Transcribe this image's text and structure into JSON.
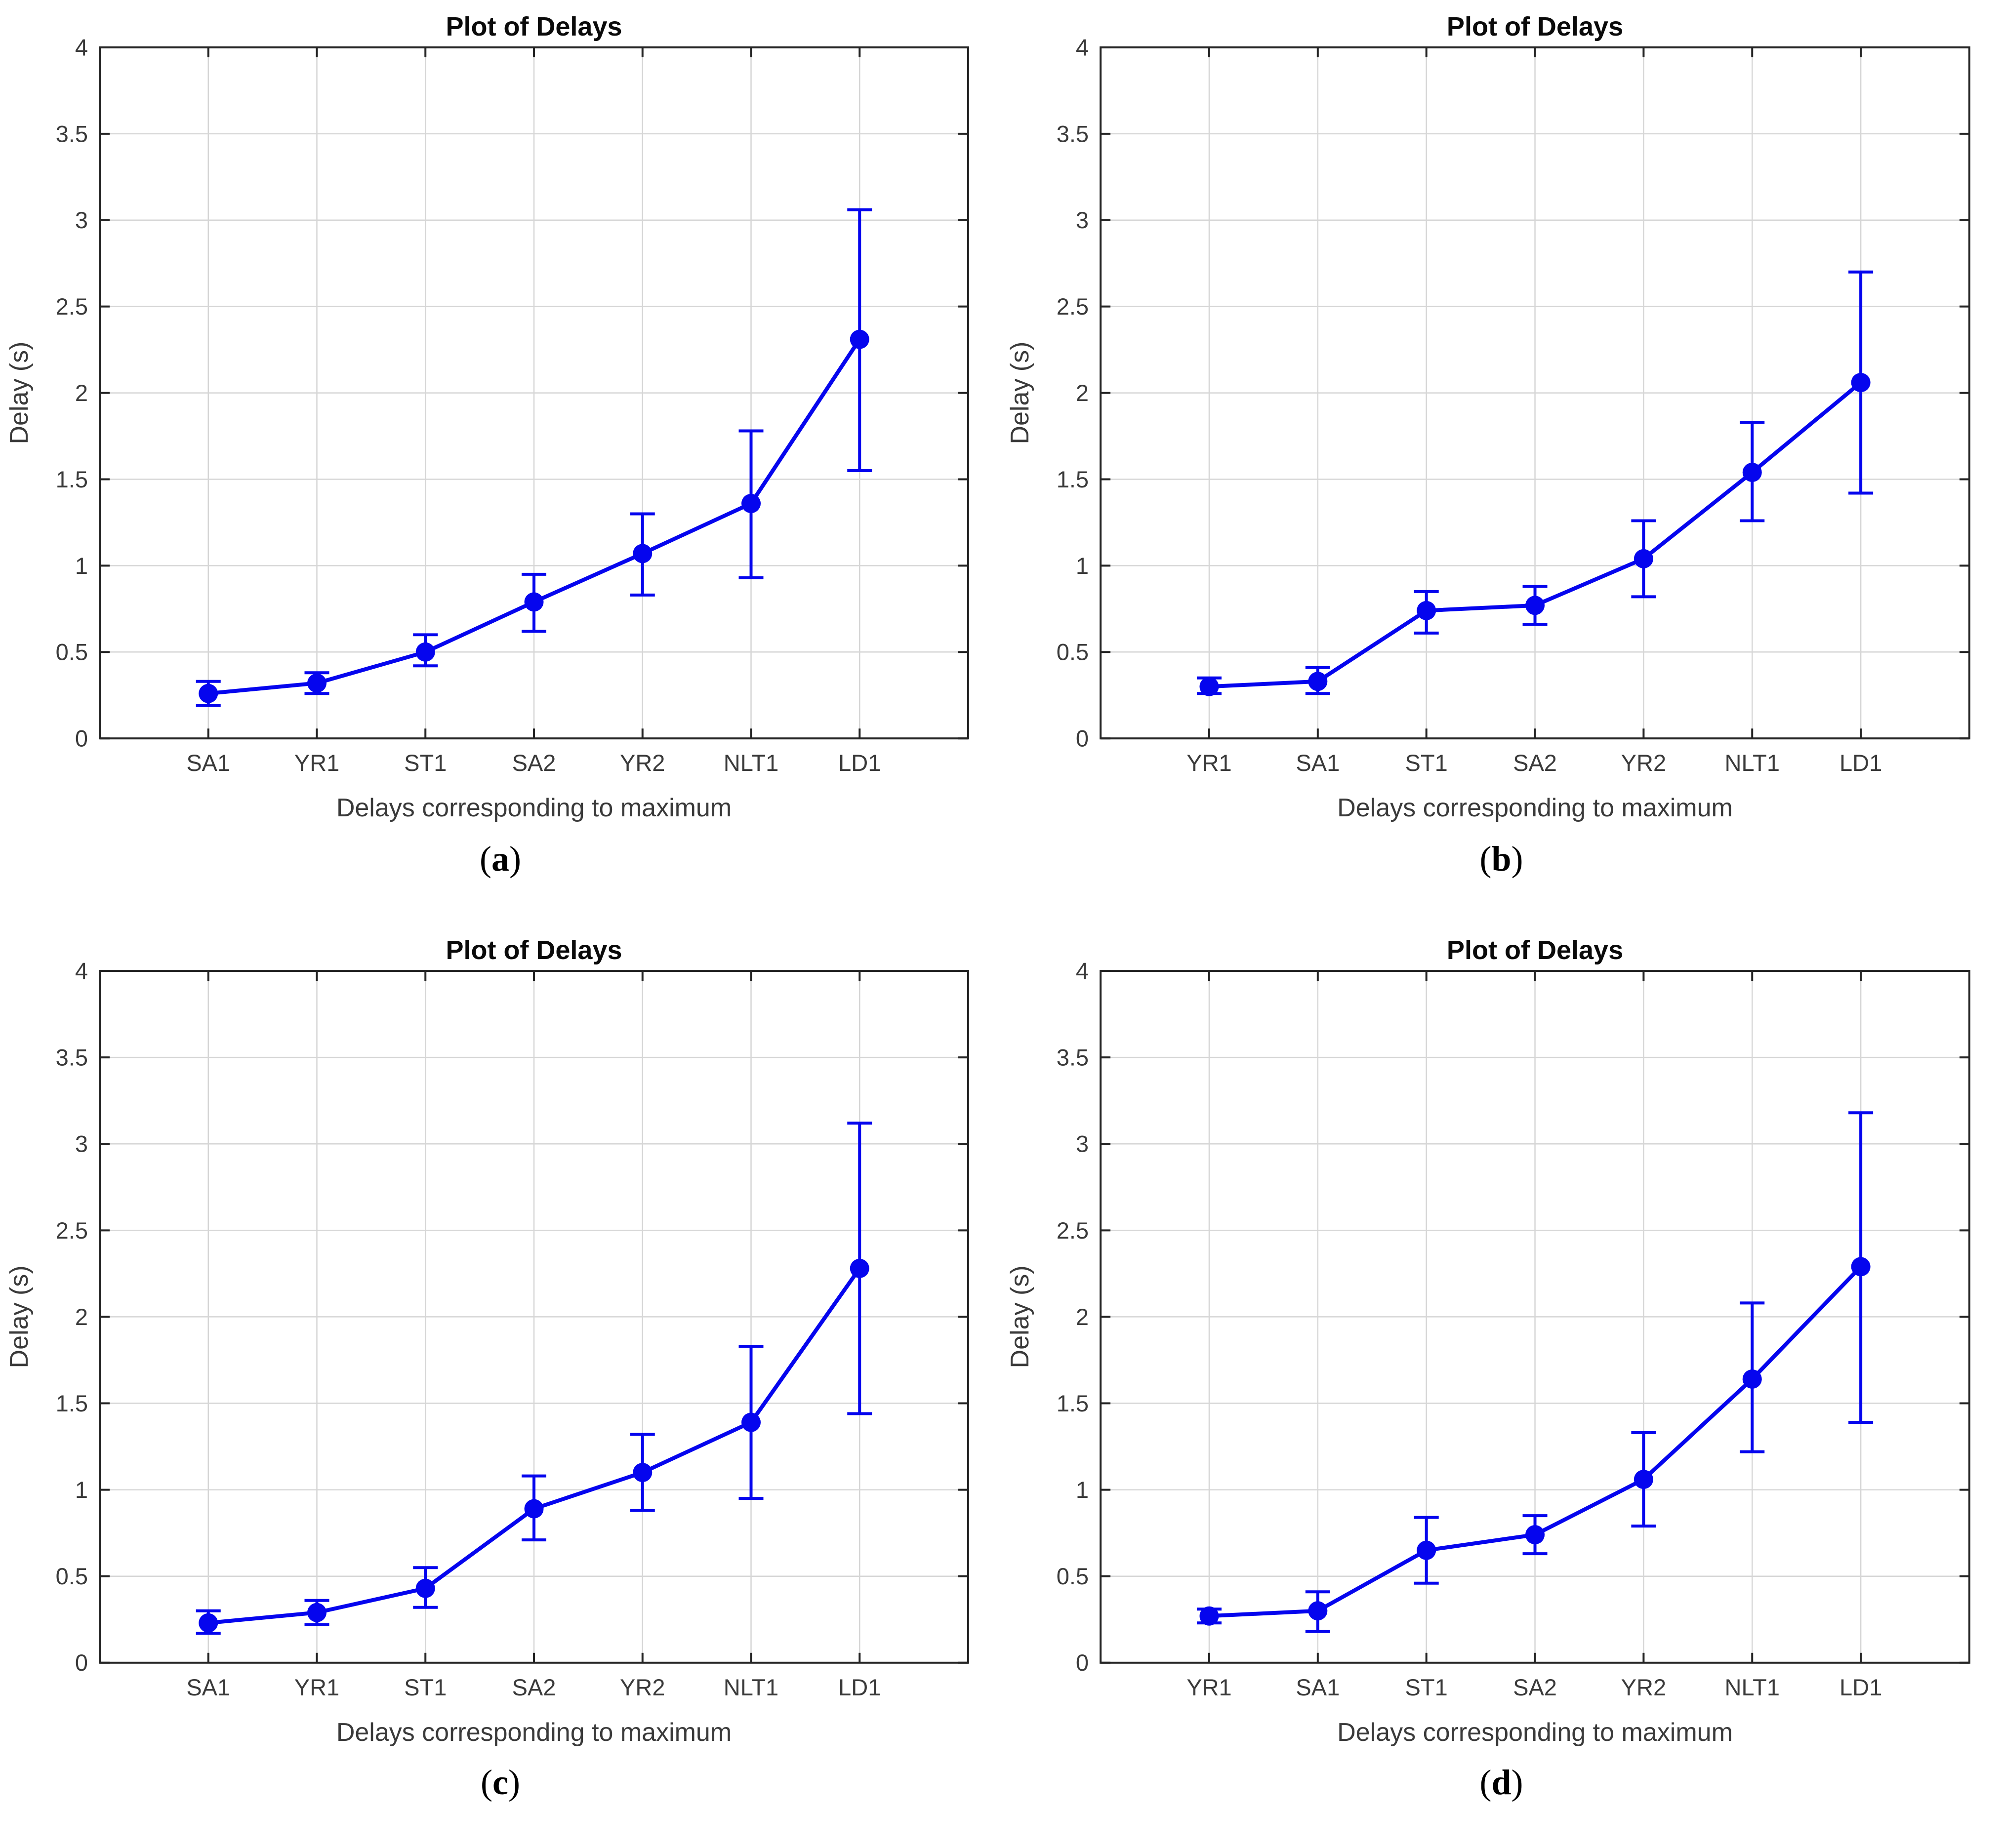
{
  "page": {
    "background": "#ffffff"
  },
  "style": {
    "line_color": "#0505ee",
    "marker_color": "#0505ee",
    "grid_color": "#d6d6d6",
    "axis_color": "#252525",
    "tick_label_color": "#3a3a3a",
    "title_color": "#0a0a0a"
  },
  "chart_data": [
    {
      "type": "line",
      "title": "Plot of Delays",
      "xlabel": "Delays corresponding to maximum",
      "ylabel": "Delay (s)",
      "ylim": [
        0,
        4
      ],
      "yticks": [
        0,
        0.5,
        1,
        1.5,
        2,
        2.5,
        3,
        3.5,
        4
      ],
      "ytick_labels": [
        "0",
        "0.5",
        "1",
        "1.5",
        "2",
        "2.5",
        "3",
        "3.5",
        "4"
      ],
      "grid": true,
      "legend": null,
      "categories": [
        "SA1",
        "YR1",
        "ST1",
        "SA2",
        "YR2",
        "NLT1",
        "LD1"
      ],
      "values": [
        0.26,
        0.32,
        0.5,
        0.79,
        1.07,
        1.36,
        2.31
      ],
      "err_low": [
        0.19,
        0.26,
        0.42,
        0.62,
        0.83,
        0.93,
        1.55
      ],
      "err_high": [
        0.33,
        0.38,
        0.6,
        0.95,
        1.3,
        1.78,
        3.06
      ],
      "caption": {
        "open": "(",
        "letter": "a",
        "close": ")"
      }
    },
    {
      "type": "line",
      "title": "Plot of Delays",
      "xlabel": "Delays corresponding to maximum",
      "ylabel": "Delay (s)",
      "ylim": [
        0,
        4
      ],
      "yticks": [
        0,
        0.5,
        1,
        1.5,
        2,
        2.5,
        3,
        3.5,
        4
      ],
      "ytick_labels": [
        "0",
        "0.5",
        "1",
        "1.5",
        "2",
        "2.5",
        "3",
        "3.5",
        "4"
      ],
      "grid": true,
      "legend": null,
      "categories": [
        "YR1",
        "SA1",
        "ST1",
        "SA2",
        "YR2",
        "NLT1",
        "LD1"
      ],
      "values": [
        0.3,
        0.33,
        0.74,
        0.77,
        1.04,
        1.54,
        2.06
      ],
      "err_low": [
        0.26,
        0.26,
        0.61,
        0.66,
        0.82,
        1.26,
        1.42
      ],
      "err_high": [
        0.35,
        0.41,
        0.85,
        0.88,
        1.26,
        1.83,
        2.7
      ],
      "caption": {
        "open": "(",
        "letter": "b",
        "close": ")"
      }
    },
    {
      "type": "line",
      "title": "Plot of Delays",
      "xlabel": "Delays corresponding to maximum",
      "ylabel": "Delay (s)",
      "ylim": [
        0,
        4
      ],
      "yticks": [
        0,
        0.5,
        1,
        1.5,
        2,
        2.5,
        3,
        3.5,
        4
      ],
      "ytick_labels": [
        "0",
        "0.5",
        "1",
        "1.5",
        "2",
        "2.5",
        "3",
        "3.5",
        "4"
      ],
      "grid": true,
      "legend": null,
      "categories": [
        "SA1",
        "YR1",
        "ST1",
        "SA2",
        "YR2",
        "NLT1",
        "LD1"
      ],
      "values": [
        0.23,
        0.29,
        0.43,
        0.89,
        1.1,
        1.39,
        2.28
      ],
      "err_low": [
        0.17,
        0.22,
        0.32,
        0.71,
        0.88,
        0.95,
        1.44
      ],
      "err_high": [
        0.3,
        0.36,
        0.55,
        1.08,
        1.32,
        1.83,
        3.12
      ],
      "caption": {
        "open": "(",
        "letter": "c",
        "close": ")"
      }
    },
    {
      "type": "line",
      "title": "Plot of Delays",
      "xlabel": "Delays corresponding to maximum",
      "ylabel": "Delay (s)",
      "ylim": [
        0,
        4
      ],
      "yticks": [
        0,
        0.5,
        1,
        1.5,
        2,
        2.5,
        3,
        3.5,
        4
      ],
      "ytick_labels": [
        "0",
        "0.5",
        "1",
        "1.5",
        "2",
        "2.5",
        "3",
        "3.5",
        "4"
      ],
      "grid": true,
      "legend": null,
      "categories": [
        "YR1",
        "SA1",
        "ST1",
        "SA2",
        "YR2",
        "NLT1",
        "LD1"
      ],
      "values": [
        0.27,
        0.3,
        0.65,
        0.74,
        1.06,
        1.64,
        2.29
      ],
      "err_low": [
        0.23,
        0.18,
        0.46,
        0.63,
        0.79,
        1.22,
        1.39
      ],
      "err_high": [
        0.31,
        0.41,
        0.84,
        0.85,
        1.33,
        2.08,
        3.18
      ],
      "caption": {
        "open": "(",
        "letter": "d",
        "close": ")"
      }
    }
  ]
}
